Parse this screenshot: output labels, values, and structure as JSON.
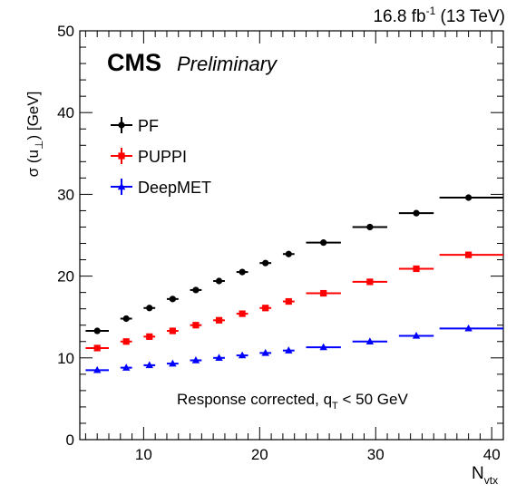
{
  "chart_data": {
    "type": "scatter",
    "lumi": "16.8 fb",
    "lumi_sup": "-1",
    "lumi_suffix": " (13 TeV)",
    "cms_label": "CMS",
    "prelim_label": "Preliminary",
    "annotation_main": "Response corrected, q",
    "annotation_sub": "T",
    "annotation_tail": " < 50 GeV",
    "ylabel_main": "σ (u",
    "ylabel_sub": "⊥",
    "ylabel_tail": ") [GeV]",
    "xlabel_main": "N",
    "xlabel_sub": "vtx",
    "xlim": [
      4.5,
      41
    ],
    "ylim": [
      0,
      50
    ],
    "xticks": [
      10,
      20,
      30,
      40
    ],
    "yticks": [
      0,
      10,
      20,
      30,
      40,
      50
    ],
    "legend_position": "upper-left",
    "series": [
      {
        "name": "PF",
        "color": "#000000",
        "marker": "circle",
        "points": [
          {
            "x": 6,
            "xlo": 5,
            "xhi": 7,
            "y": 13.3
          },
          {
            "x": 8.5,
            "xlo": 8,
            "xhi": 9,
            "y": 14.8
          },
          {
            "x": 10.5,
            "xlo": 10,
            "xhi": 11,
            "y": 16.1
          },
          {
            "x": 12.5,
            "xlo": 12,
            "xhi": 13,
            "y": 17.2
          },
          {
            "x": 14.5,
            "xlo": 14,
            "xhi": 15,
            "y": 18.3
          },
          {
            "x": 16.5,
            "xlo": 16,
            "xhi": 17,
            "y": 19.4
          },
          {
            "x": 18.5,
            "xlo": 18,
            "xhi": 19,
            "y": 20.5
          },
          {
            "x": 20.5,
            "xlo": 20,
            "xhi": 21,
            "y": 21.6
          },
          {
            "x": 22.5,
            "xlo": 22,
            "xhi": 23,
            "y": 22.7
          },
          {
            "x": 25.5,
            "xlo": 24,
            "xhi": 27,
            "y": 24.1
          },
          {
            "x": 29.5,
            "xlo": 28,
            "xhi": 31,
            "y": 26.0
          },
          {
            "x": 33.5,
            "xlo": 32,
            "xhi": 35,
            "y": 27.7
          },
          {
            "x": 38,
            "xlo": 35.5,
            "xhi": 41,
            "y": 29.6
          }
        ]
      },
      {
        "name": "PUPPI",
        "color": "#ff0000",
        "marker": "square",
        "points": [
          {
            "x": 6,
            "xlo": 5,
            "xhi": 7,
            "y": 11.2
          },
          {
            "x": 8.5,
            "xlo": 8,
            "xhi": 9,
            "y": 12.0
          },
          {
            "x": 10.5,
            "xlo": 10,
            "xhi": 11,
            "y": 12.6
          },
          {
            "x": 12.5,
            "xlo": 12,
            "xhi": 13,
            "y": 13.3
          },
          {
            "x": 14.5,
            "xlo": 14,
            "xhi": 15,
            "y": 14.0
          },
          {
            "x": 16.5,
            "xlo": 16,
            "xhi": 17,
            "y": 14.6
          },
          {
            "x": 18.5,
            "xlo": 18,
            "xhi": 19,
            "y": 15.4
          },
          {
            "x": 20.5,
            "xlo": 20,
            "xhi": 21,
            "y": 16.1
          },
          {
            "x": 22.5,
            "xlo": 22,
            "xhi": 23,
            "y": 16.9
          },
          {
            "x": 25.5,
            "xlo": 24,
            "xhi": 27,
            "y": 17.9
          },
          {
            "x": 29.5,
            "xlo": 28,
            "xhi": 31,
            "y": 19.3
          },
          {
            "x": 33.5,
            "xlo": 32,
            "xhi": 35,
            "y": 20.9
          },
          {
            "x": 38,
            "xlo": 35.5,
            "xhi": 41,
            "y": 22.6
          }
        ]
      },
      {
        "name": "DeepMET",
        "color": "#0000ff",
        "marker": "triangle",
        "points": [
          {
            "x": 6,
            "xlo": 5,
            "xhi": 7,
            "y": 8.5
          },
          {
            "x": 8.5,
            "xlo": 8,
            "xhi": 9,
            "y": 8.8
          },
          {
            "x": 10.5,
            "xlo": 10,
            "xhi": 11,
            "y": 9.1
          },
          {
            "x": 12.5,
            "xlo": 12,
            "xhi": 13,
            "y": 9.3
          },
          {
            "x": 14.5,
            "xlo": 14,
            "xhi": 15,
            "y": 9.7
          },
          {
            "x": 16.5,
            "xlo": 16,
            "xhi": 17,
            "y": 10.0
          },
          {
            "x": 18.5,
            "xlo": 18,
            "xhi": 19,
            "y": 10.3
          },
          {
            "x": 20.5,
            "xlo": 20,
            "xhi": 21,
            "y": 10.6
          },
          {
            "x": 22.5,
            "xlo": 22,
            "xhi": 23,
            "y": 10.9
          },
          {
            "x": 25.5,
            "xlo": 24,
            "xhi": 27,
            "y": 11.3
          },
          {
            "x": 29.5,
            "xlo": 28,
            "xhi": 31,
            "y": 12.0
          },
          {
            "x": 33.5,
            "xlo": 32,
            "xhi": 35,
            "y": 12.7
          },
          {
            "x": 38,
            "xlo": 35.5,
            "xhi": 41,
            "y": 13.6
          }
        ]
      }
    ]
  }
}
